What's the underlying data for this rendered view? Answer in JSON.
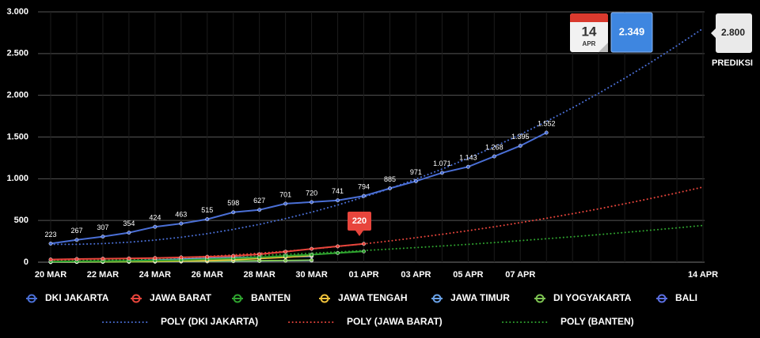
{
  "chart_data": {
    "type": "line",
    "categories": [
      "20 MAR",
      null,
      "22 MAR",
      null,
      "24 MAR",
      null,
      "26 MAR",
      null,
      "28 MAR",
      null,
      "30 MAR",
      null,
      "01 APR",
      null,
      "03 APR",
      null,
      "05 APR",
      null,
      "07 APR",
      null,
      null,
      null,
      null,
      null,
      null,
      "14 APR"
    ],
    "ylim": [
      0,
      3000
    ],
    "yticks": [
      0,
      {
        "value": 500,
        "label": "500"
      },
      {
        "value": 1000,
        "label": "1.000"
      },
      {
        "value": 1500,
        "label": "1.500"
      },
      {
        "value": 2000,
        "label": "2.000"
      },
      {
        "value": 2500,
        "label": "2.500"
      },
      {
        "value": 3000,
        "label": "3.000"
      }
    ],
    "grid": true,
    "series": [
      {
        "name": "DKI JAKARTA",
        "color": "#4a6fd6",
        "values": [
          223,
          267,
          307,
          354,
          424,
          463,
          515,
          598,
          627,
          701,
          720,
          741,
          794,
          885,
          971,
          1071,
          1143,
          1268,
          1395,
          1552,
          null,
          null,
          null,
          null,
          null,
          null
        ],
        "value_labels": [
          "223",
          "267",
          "307",
          "354",
          "424",
          "463",
          "515",
          "598",
          "627",
          "701",
          "720",
          "741",
          "794",
          "885",
          "971",
          "1.071",
          "1.143",
          "1.268",
          "1.395",
          "1.552",
          null,
          null,
          null,
          null,
          null,
          null
        ]
      },
      {
        "name": "JAWA BARAT",
        "color": "#e8453c",
        "values": [
          32,
          38,
          42,
          45,
          50,
          58,
          65,
          75,
          95,
          125,
          160,
          190,
          220,
          null,
          null,
          null,
          null,
          null,
          null,
          null,
          null,
          null,
          null,
          null,
          null,
          null
        ]
      },
      {
        "name": "BANTEN",
        "color": "#2fa42f",
        "values": [
          8,
          10,
          12,
          15,
          20,
          25,
          35,
          45,
          60,
          75,
          90,
          110,
          130,
          null,
          null,
          null,
          null,
          null,
          null,
          null,
          null,
          null,
          null,
          null,
          null,
          null
        ]
      },
      {
        "name": "JAWA TENGAH",
        "color": "#f0c23b",
        "values": [
          5,
          6,
          8,
          10,
          12,
          15,
          20,
          30,
          45,
          60,
          80,
          null,
          null,
          null,
          null,
          null,
          null,
          null,
          null,
          null,
          null,
          null,
          null,
          null,
          null,
          null
        ]
      },
      {
        "name": "JAWA TIMUR",
        "color": "#6aa2e8",
        "values": [
          2,
          4,
          9,
          15,
          25,
          35,
          45,
          55,
          60,
          65,
          70,
          null,
          null,
          null,
          null,
          null,
          null,
          null,
          null,
          null,
          null,
          null,
          null,
          null,
          null,
          null
        ]
      },
      {
        "name": "DI YOGYAKARTA",
        "color": "#7dc352",
        "values": [
          2,
          3,
          4,
          5,
          8,
          10,
          12,
          15,
          18,
          20,
          25,
          null,
          null,
          null,
          null,
          null,
          null,
          null,
          null,
          null,
          null,
          null,
          null,
          null,
          null,
          null
        ]
      },
      {
        "name": "BALI",
        "color": "#5a6ee0",
        "values": [
          2,
          3,
          4,
          5,
          6,
          8,
          10,
          12,
          15,
          18,
          20,
          null,
          null,
          null,
          null,
          null,
          null,
          null,
          null,
          null,
          null,
          null,
          null,
          null,
          null,
          null
        ]
      },
      {
        "name": "POLY (DKI JAKARTA)",
        "color": "#4a6fd6",
        "dotted": true,
        "values": [
          215,
          214,
          223,
          239,
          265,
          299,
          342,
          393,
          453,
          522,
          599,
          685,
          780,
          883,
          996,
          1116,
          1246,
          1384,
          1530,
          1686,
          1850,
          2023,
          2204,
          2394,
          2593,
          2800
        ]
      },
      {
        "name": "POLY (JAWA BARAT)",
        "color": "#e8453c",
        "dotted": true,
        "values": [
          20,
          21,
          25,
          32,
          41,
          53,
          69,
          87,
          108,
          132,
          158,
          188,
          220,
          255,
          293,
          334,
          378,
          424,
          474,
          526,
          581,
          639,
          700,
          764,
          830,
          900
        ]
      },
      {
        "name": "POLY (BANTEN)",
        "color": "#2fa42f",
        "dotted": true,
        "values": [
          10,
          15,
          22,
          29,
          37,
          47,
          57,
          69,
          81,
          94,
          108,
          123,
          140,
          157,
          175,
          194,
          214,
          235,
          258,
          281,
          305,
          330,
          356,
          383,
          411,
          440
        ]
      }
    ],
    "annotations": [
      "220",
      "14",
      "APR",
      "2.349",
      "2.800",
      "PREDIKSI"
    ]
  }
}
